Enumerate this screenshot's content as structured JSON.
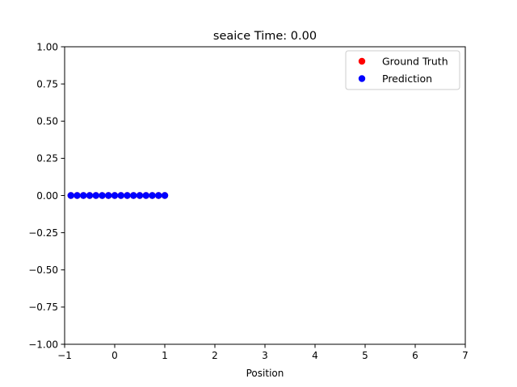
{
  "chart_data": {
    "type": "scatter",
    "title": "seaice Time: 0.00",
    "xlabel": "Position",
    "ylabel": "",
    "xlim": [
      -1,
      7
    ],
    "ylim": [
      -1,
      1
    ],
    "xticks": [
      -1,
      0,
      1,
      2,
      3,
      4,
      5,
      6,
      7
    ],
    "yticks": [
      -1,
      -0.75,
      -0.5,
      -0.25,
      0,
      0.25,
      0.5,
      0.75,
      1
    ],
    "xtick_labels": [
      "−1",
      "0",
      "1",
      "2",
      "3",
      "4",
      "5",
      "6",
      "7"
    ],
    "ytick_labels": [
      "−1.00",
      "−0.75",
      "−0.50",
      "−0.25",
      "0.00",
      "0.25",
      "0.50",
      "0.75",
      "1.00"
    ],
    "grid": false,
    "legend_position": "top-right",
    "series": [
      {
        "name": "Ground Truth",
        "color": "#ff0000",
        "x": [
          -0.875,
          -0.75,
          -0.625,
          -0.5,
          -0.375,
          -0.25,
          -0.125,
          0,
          0.125,
          0.25,
          0.375,
          0.5,
          0.625,
          0.75,
          0.875,
          1.0
        ],
        "y": [
          0,
          0,
          0,
          0,
          0,
          0,
          0,
          0,
          0,
          0,
          0,
          0,
          0,
          0,
          0,
          0
        ]
      },
      {
        "name": "Prediction",
        "color": "#0000ff",
        "x": [
          -0.875,
          -0.75,
          -0.625,
          -0.5,
          -0.375,
          -0.25,
          -0.125,
          0,
          0.125,
          0.25,
          0.375,
          0.5,
          0.625,
          0.75,
          0.875,
          1.0
        ],
        "y": [
          0,
          0,
          0,
          0,
          0,
          0,
          0,
          0,
          0,
          0,
          0,
          0,
          0,
          0,
          0,
          0
        ]
      }
    ]
  }
}
